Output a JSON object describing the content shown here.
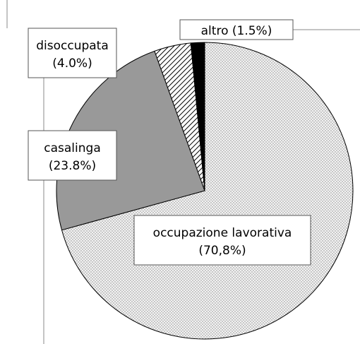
{
  "chart_data": {
    "type": "pie",
    "categories": [
      "occupazione lavorativa",
      "casalinga",
      "disoccupata",
      "altro"
    ],
    "values": [
      70.8,
      23.8,
      4.0,
      1.5
    ],
    "value_labels": [
      "(70,8%)",
      "(23.8%)",
      "(4.0%)",
      "(1.5%)"
    ],
    "colors": [
      "#cfcfcf",
      "#999999",
      "#000000",
      "#000000"
    ],
    "patterns": [
      "dots",
      "solid",
      "hatch",
      "solid"
    ]
  }
}
